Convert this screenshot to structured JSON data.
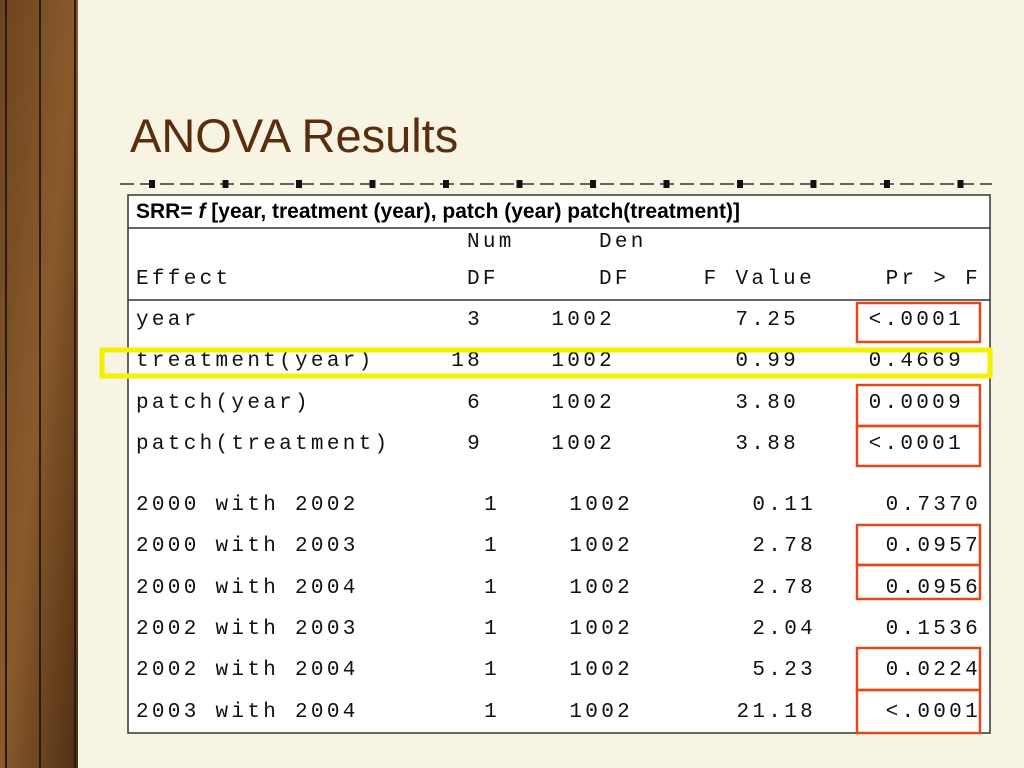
{
  "title": "ANOVA Results",
  "model": {
    "prefix": "SRR=",
    "function": "f",
    "args": "[year, treatment (year), patch (year) patch(treatment)]"
  },
  "table": {
    "header_top": {
      "num": "Num",
      "den": "Den"
    },
    "columns": [
      "Effect",
      "DF",
      "DF",
      "F Value",
      "Pr > F"
    ],
    "rows": [
      [
        "year",
        "3",
        "1002",
        "7.25",
        "<.0001"
      ],
      [
        "treatment(year)",
        "18",
        "1002",
        "0.99",
        "0.4669"
      ],
      [
        "patch(year)",
        "6",
        "1002",
        "3.80",
        "0.0009"
      ],
      [
        "patch(treatment)",
        "9",
        "1002",
        "3.88",
        "<.0001"
      ],
      [
        "2000 with 2002",
        "1",
        "1002",
        "0.11",
        "0.7370"
      ],
      [
        "2000 with 2003",
        "1",
        "1002",
        "2.78",
        "0.0957"
      ],
      [
        "2000 with 2004",
        "1",
        "1002",
        "2.78",
        "0.0956"
      ],
      [
        "2002 with 2003",
        "1",
        "1002",
        "2.04",
        "0.1536"
      ],
      [
        "2002 with 2004",
        "1",
        "1002",
        "5.23",
        "0.0224"
      ],
      [
        "2003 with 2004",
        "1",
        "1002",
        "21.18",
        "<.0001"
      ]
    ]
  }
}
